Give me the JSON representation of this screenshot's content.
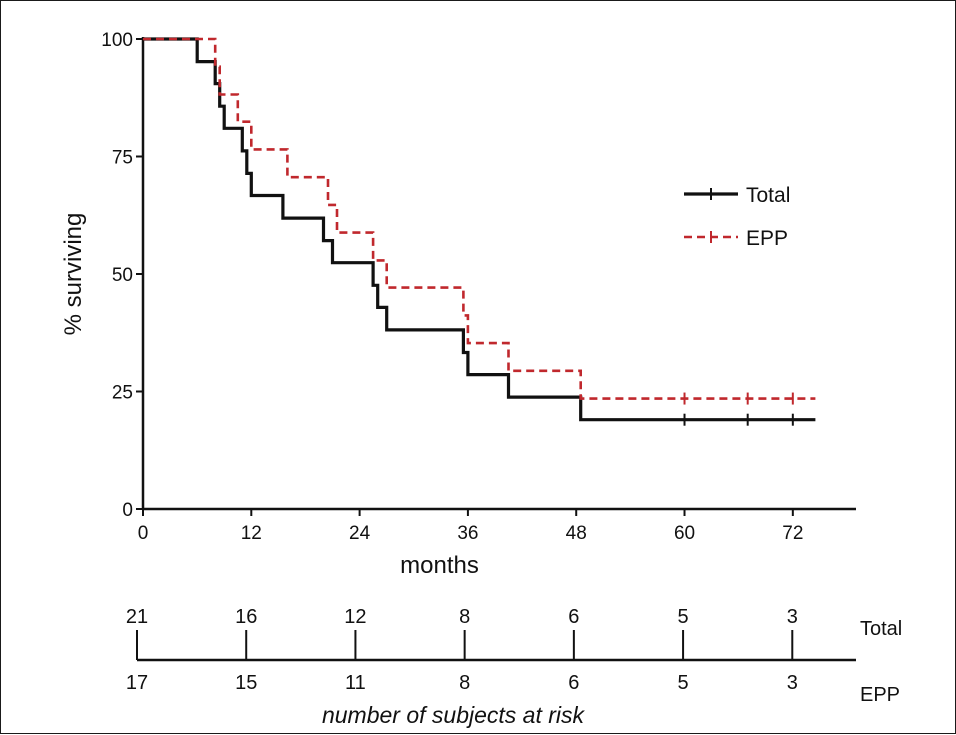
{
  "chart_data": {
    "type": "line",
    "subtype": "kaplan-meier-step",
    "title": "",
    "xlabel": "months",
    "ylabel": "% surviving",
    "xlim": [
      0,
      79
    ],
    "ylim": [
      0,
      100
    ],
    "x_ticks": [
      0,
      12,
      24,
      36,
      48,
      60,
      72
    ],
    "y_ticks": [
      0,
      25,
      50,
      75,
      100
    ],
    "grid": false,
    "legend_position": "right",
    "series": [
      {
        "name": "Total",
        "color": "#111111",
        "style": "solid",
        "points": [
          [
            0,
            100
          ],
          [
            6,
            100
          ],
          [
            6,
            95.2
          ],
          [
            8,
            95.2
          ],
          [
            8,
            90.5
          ],
          [
            8.5,
            90.5
          ],
          [
            8.5,
            85.7
          ],
          [
            9,
            85.7
          ],
          [
            9,
            81
          ],
          [
            11,
            81
          ],
          [
            11,
            76.2
          ],
          [
            11.5,
            76.2
          ],
          [
            11.5,
            71.4
          ],
          [
            12,
            71.4
          ],
          [
            12,
            66.7
          ],
          [
            15.5,
            66.7
          ],
          [
            15.5,
            61.9
          ],
          [
            20,
            61.9
          ],
          [
            20,
            57.1
          ],
          [
            21,
            57.1
          ],
          [
            21,
            52.4
          ],
          [
            25.5,
            52.4
          ],
          [
            25.5,
            47.6
          ],
          [
            26,
            47.6
          ],
          [
            26,
            42.9
          ],
          [
            27,
            42.9
          ],
          [
            27,
            38.1
          ],
          [
            35.5,
            38.1
          ],
          [
            35.5,
            33.3
          ],
          [
            36,
            33.3
          ],
          [
            36,
            28.6
          ],
          [
            40.5,
            28.6
          ],
          [
            40.5,
            23.8
          ],
          [
            48.5,
            23.8
          ],
          [
            48.5,
            19
          ],
          [
            74.5,
            19
          ]
        ],
        "censor_x": [
          60,
          67,
          72
        ]
      },
      {
        "name": "EPP",
        "color": "#c0282d",
        "style": "dashed",
        "points": [
          [
            0,
            100
          ],
          [
            8,
            100
          ],
          [
            8,
            94.1
          ],
          [
            8.5,
            94.1
          ],
          [
            8.5,
            88.2
          ],
          [
            10.5,
            88.2
          ],
          [
            10.5,
            82.4
          ],
          [
            12,
            82.4
          ],
          [
            12,
            76.5
          ],
          [
            16,
            76.5
          ],
          [
            16,
            70.6
          ],
          [
            20.5,
            70.6
          ],
          [
            20.5,
            64.7
          ],
          [
            21.5,
            64.7
          ],
          [
            21.5,
            58.8
          ],
          [
            25.5,
            58.8
          ],
          [
            25.5,
            52.9
          ],
          [
            27,
            52.9
          ],
          [
            27,
            47.1
          ],
          [
            35.5,
            47.1
          ],
          [
            35.5,
            41.2
          ],
          [
            36,
            41.2
          ],
          [
            36,
            35.3
          ],
          [
            40.5,
            35.3
          ],
          [
            40.5,
            29.4
          ],
          [
            48.5,
            29.4
          ],
          [
            48.5,
            23.5
          ],
          [
            74.5,
            23.5
          ]
        ],
        "censor_x": [
          60,
          67,
          72
        ]
      }
    ],
    "risk_table": {
      "title": "number of subjects at risk",
      "timepoints": [
        0,
        12,
        24,
        36,
        48,
        60,
        72
      ],
      "rows": [
        {
          "name": "Total",
          "values": [
            "21",
            "16",
            "12",
            "8",
            "6",
            "5",
            "3"
          ]
        },
        {
          "name": "EPP",
          "values": [
            "17",
            "15",
            "11",
            "8",
            "6",
            "5",
            "3"
          ]
        }
      ]
    }
  }
}
